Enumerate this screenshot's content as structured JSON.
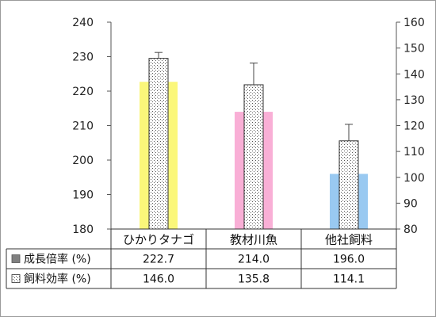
{
  "chart_data": {
    "type": "bar",
    "categories": [
      "ひかりタナゴ",
      "教材川魚",
      "他社飼料"
    ],
    "series": [
      {
        "name": "成長倍率 (%)",
        "axis": "left",
        "values": [
          222.7,
          214.0,
          196.0
        ],
        "colors": [
          "#fbf77a",
          "#f9afd6",
          "#99c9f1"
        ],
        "legend_swatch": "#808080"
      },
      {
        "name": "飼料効率 (%)",
        "axis": "right",
        "values": [
          146.0,
          135.8,
          114.1
        ],
        "error_upper": [
          148.3,
          144.2,
          120.5
        ],
        "pattern": "dotted",
        "color": "#ffffff"
      }
    ],
    "ylim_left": [
      180,
      240
    ],
    "yticks_left": [
      180,
      190,
      200,
      210,
      220,
      230,
      240
    ],
    "ylim_right": [
      80,
      160
    ],
    "yticks_right": [
      80,
      90,
      100,
      110,
      120,
      130,
      140,
      150,
      160
    ],
    "grid": false,
    "legend": "table-below",
    "table": {
      "rows": [
        {
          "label": "成長倍率 (%)",
          "cells": [
            "222.7",
            "214.0",
            "196.0"
          ]
        },
        {
          "label": "飼料効率 (%)",
          "cells": [
            "146.0",
            "135.8",
            "114.1"
          ]
        }
      ]
    }
  }
}
